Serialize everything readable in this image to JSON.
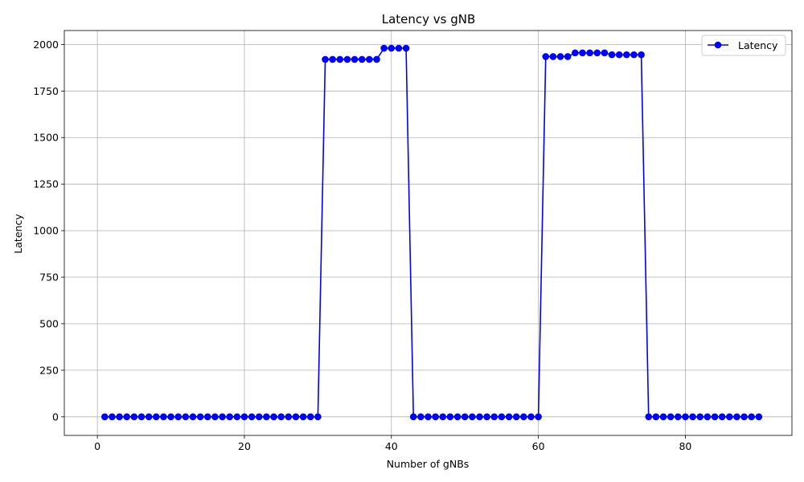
{
  "chart_data": {
    "type": "line",
    "title": "Latency vs gNB",
    "xlabel": "Number of gNBs",
    "ylabel": "Latency",
    "xlim": [
      -4.5,
      94.5
    ],
    "ylim": [
      -100,
      2075
    ],
    "xticks": [
      0,
      20,
      40,
      60,
      80
    ],
    "yticks": [
      0,
      250,
      500,
      750,
      1000,
      1250,
      1500,
      1750,
      2000
    ],
    "grid": true,
    "legend_position": "top-right",
    "series": [
      {
        "name": "Latency",
        "color": "#0000ff",
        "marker": "circle",
        "x": [
          1,
          2,
          3,
          4,
          5,
          6,
          7,
          8,
          9,
          10,
          11,
          12,
          13,
          14,
          15,
          16,
          17,
          18,
          19,
          20,
          21,
          22,
          23,
          24,
          25,
          26,
          27,
          28,
          29,
          30,
          31,
          32,
          33,
          34,
          35,
          36,
          37,
          38,
          39,
          40,
          41,
          42,
          43,
          44,
          45,
          46,
          47,
          48,
          49,
          50,
          51,
          52,
          53,
          54,
          55,
          56,
          57,
          58,
          59,
          60,
          61,
          62,
          63,
          64,
          65,
          66,
          67,
          68,
          69,
          70,
          71,
          72,
          73,
          74,
          75,
          76,
          77,
          78,
          79,
          80,
          81,
          82,
          83,
          84,
          85,
          86,
          87,
          88,
          89,
          90
        ],
        "values": [
          0,
          0,
          0,
          0,
          0,
          0,
          0,
          0,
          0,
          0,
          0,
          0,
          0,
          0,
          0,
          0,
          0,
          0,
          0,
          0,
          0,
          0,
          0,
          0,
          0,
          0,
          0,
          0,
          0,
          0,
          1920,
          1920,
          1920,
          1920,
          1920,
          1920,
          1920,
          1920,
          1980,
          1980,
          1980,
          1980,
          0,
          0,
          0,
          0,
          0,
          0,
          0,
          0,
          0,
          0,
          0,
          0,
          0,
          0,
          0,
          0,
          0,
          0,
          1935,
          1935,
          1935,
          1935,
          1955,
          1955,
          1955,
          1955,
          1955,
          1945,
          1945,
          1945,
          1945,
          1945,
          0,
          0,
          0,
          0,
          0,
          0,
          0,
          0,
          0,
          0,
          0,
          0,
          0,
          0,
          0,
          0
        ]
      }
    ]
  }
}
